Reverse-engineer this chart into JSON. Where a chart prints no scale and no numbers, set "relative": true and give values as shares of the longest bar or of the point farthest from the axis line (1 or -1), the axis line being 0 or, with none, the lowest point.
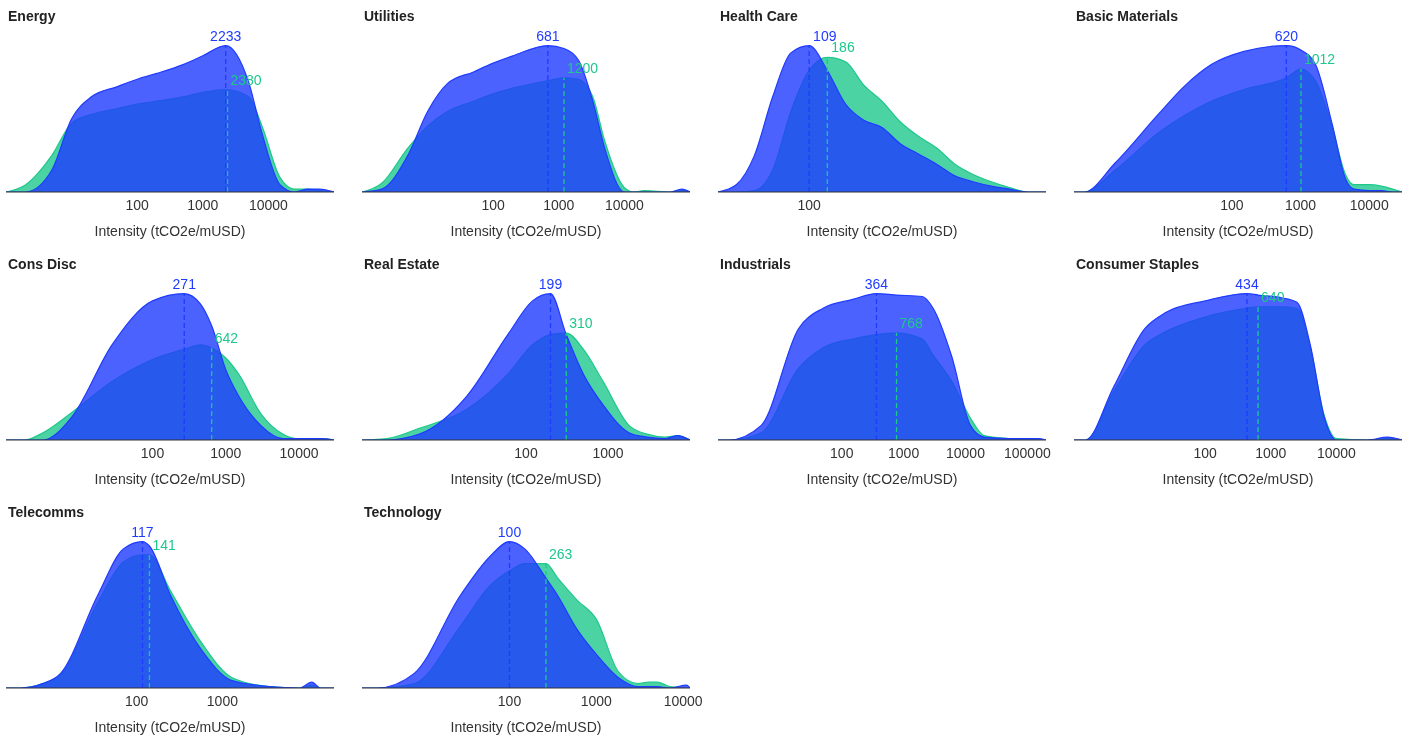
{
  "chart_data": [
    {
      "type": "area",
      "title": "Energy",
      "xlabel": "Intensity (tCO2e/mUSD)",
      "log": "x",
      "relative": true,
      "xlim": [
        1,
        100000
      ],
      "xticks": [
        100,
        1000,
        10000
      ],
      "x": [
        1,
        2,
        5,
        10,
        20,
        50,
        100,
        200,
        500,
        1000,
        2233,
        5000,
        8000,
        15000,
        25000,
        40000,
        60000,
        100000
      ],
      "series": [
        {
          "color": "#1ec88c",
          "values": [
            0,
            0.05,
            0.25,
            0.47,
            0.53,
            0.57,
            0.6,
            0.62,
            0.65,
            0.68,
            0.7,
            0.65,
            0.45,
            0.1,
            0.02,
            0.02,
            0.01,
            0
          ]
        },
        {
          "color": "#1f3bff",
          "values": [
            0,
            0,
            0.15,
            0.5,
            0.65,
            0.72,
            0.77,
            0.81,
            0.87,
            0.93,
            1.0,
            0.75,
            0.4,
            0.05,
            0,
            0.02,
            0.02,
            0
          ]
        }
      ],
      "ref_lines": [
        {
          "axis": "x",
          "value": 2380,
          "label": "2380",
          "color": "#1ec88c",
          "line_style": "dashed"
        },
        {
          "axis": "x",
          "value": 2233,
          "label": "2233",
          "color": "#1f3bff",
          "line_style": "dashed"
        }
      ]
    },
    {
      "type": "area",
      "title": "Utilities",
      "xlabel": "Intensity (tCO2e/mUSD)",
      "log": "x",
      "relative": true,
      "xlim": [
        1,
        100000
      ],
      "xticks": [
        100,
        1000,
        10000
      ],
      "x": [
        1,
        2,
        5,
        10,
        20,
        50,
        100,
        200,
        681,
        1200,
        2000,
        3300,
        5000,
        10000,
        14000,
        20000,
        50000,
        75000,
        100000
      ],
      "series": [
        {
          "color": "#1ec88c",
          "values": [
            0,
            0.06,
            0.3,
            0.45,
            0.55,
            0.62,
            0.67,
            0.71,
            0.76,
            0.78,
            0.77,
            0.65,
            0.35,
            0.03,
            0,
            0.01,
            0,
            0.01,
            0
          ]
        },
        {
          "color": "#1f3bff",
          "values": [
            0,
            0.02,
            0.25,
            0.55,
            0.74,
            0.82,
            0.88,
            0.93,
            1.0,
            0.98,
            0.9,
            0.62,
            0.3,
            0,
            0,
            0,
            0,
            0.02,
            0
          ]
        }
      ],
      "ref_lines": [
        {
          "axis": "x",
          "value": 1200,
          "label": "1200",
          "color": "#1ec88c",
          "line_style": "dashed"
        },
        {
          "axis": "x",
          "value": 681,
          "label": "681",
          "color": "#1f3bff",
          "line_style": "dashed"
        }
      ]
    },
    {
      "type": "area",
      "title": "Health Care",
      "xlabel": "Intensity (tCO2e/mUSD)",
      "relative": true,
      "annotations": [
        "186",
        "109",
        "100"
      ],
      "categories": [
        null,
        null,
        null,
        null,
        null,
        null,
        null,
        null,
        null,
        null,
        null,
        null,
        null,
        null,
        null,
        null,
        null,
        null,
        null
      ],
      "series": [
        {
          "color": "#1ec88c",
          "values": [
            0,
            0,
            0.01,
            0.15,
            0.55,
            0.83,
            0.92,
            0.89,
            0.73,
            0.62,
            0.48,
            0.38,
            0.3,
            0.19,
            0.12,
            0.07,
            0.03,
            0,
            0
          ]
        },
        {
          "color": "#1f3bff",
          "values": [
            0,
            0.05,
            0.25,
            0.65,
            0.95,
            1.0,
            0.83,
            0.6,
            0.49,
            0.44,
            0.33,
            0.26,
            0.19,
            0.11,
            0.07,
            0.04,
            0.02,
            0,
            0
          ]
        }
      ]
    },
    {
      "type": "area",
      "title": "Basic Materials",
      "xlabel": "Intensity (tCO2e/mUSD)",
      "log": "x",
      "relative": true,
      "xlim": [
        0.5,
        30000
      ],
      "xticks": [
        100,
        1000,
        10000
      ],
      "x": [
        0.5,
        0.7,
        2,
        8.8,
        20,
        50,
        150,
        620,
        1012,
        1650,
        2900,
        4500,
        6000,
        10000,
        15000,
        22000,
        30000
      ],
      "series": [
        {
          "color": "#1ec88c",
          "values": [
            0,
            0,
            0.15,
            0.41,
            0.52,
            0.62,
            0.7,
            0.78,
            0.84,
            0.76,
            0.44,
            0.12,
            0.05,
            0.05,
            0.04,
            0.02,
            0
          ]
        },
        {
          "color": "#1f3bff",
          "values": [
            0,
            0,
            0.2,
            0.54,
            0.72,
            0.87,
            0.96,
            1.0,
            0.97,
            0.87,
            0.46,
            0.09,
            0.02,
            0.01,
            0.01,
            0,
            0
          ]
        }
      ],
      "ref_lines": [
        {
          "axis": "x",
          "value": 1012,
          "label": "1012",
          "color": "#1ec88c",
          "line_style": "dashed"
        },
        {
          "axis": "x",
          "value": 620,
          "label": "620",
          "color": "#1f3bff",
          "line_style": "dashed"
        }
      ]
    },
    {
      "type": "area",
      "title": "Cons Disc",
      "xlabel": "Intensity (tCO2e/mUSD)",
      "log": "x",
      "relative": true,
      "xlim": [
        1,
        30000
      ],
      "xticks": [
        100,
        1000,
        10000
      ],
      "x": [
        1,
        1.8,
        3.2,
        8,
        28,
        100,
        271,
        450,
        642,
        1000,
        1500,
        3000,
        6000,
        9000,
        20000,
        30000
      ],
      "series": [
        {
          "color": "#1ec88c",
          "values": [
            0,
            0,
            0.05,
            0.19,
            0.4,
            0.55,
            0.62,
            0.65,
            0.63,
            0.56,
            0.45,
            0.18,
            0.04,
            0.01,
            0.01,
            0
          ]
        },
        {
          "color": "#1f3bff",
          "values": [
            0,
            0,
            0,
            0.16,
            0.65,
            0.95,
            1.0,
            0.93,
            0.78,
            0.48,
            0.3,
            0.1,
            0.01,
            0.01,
            0.01,
            0
          ]
        }
      ],
      "ref_lines": [
        {
          "axis": "x",
          "value": 642,
          "label": "642",
          "color": "#1ec88c",
          "line_style": "dashed"
        },
        {
          "axis": "x",
          "value": 271,
          "label": "271",
          "color": "#1f3bff",
          "line_style": "dashed"
        }
      ]
    },
    {
      "type": "area",
      "title": "Real Estate",
      "xlabel": "Intensity (tCO2e/mUSD)",
      "log": "x",
      "relative": true,
      "xlim": [
        1,
        10000
      ],
      "xticks": [
        100,
        1000
      ],
      "x": [
        1,
        2,
        5,
        19,
        60,
        120,
        199,
        310,
        500,
        870,
        1800,
        3000,
        5000,
        7000,
        10000
      ],
      "series": [
        {
          "color": "#1ec88c",
          "values": [
            0,
            0.01,
            0.08,
            0.21,
            0.45,
            0.65,
            0.72,
            0.73,
            0.62,
            0.4,
            0.1,
            0.04,
            0.02,
            0.03,
            0
          ]
        },
        {
          "color": "#1f3bff",
          "values": [
            0,
            0,
            0.04,
            0.3,
            0.72,
            0.95,
            1.0,
            0.72,
            0.45,
            0.24,
            0.05,
            0.02,
            0.01,
            0.03,
            0
          ]
        }
      ],
      "ref_lines": [
        {
          "axis": "x",
          "value": 310,
          "label": "310",
          "color": "#1ec88c",
          "line_style": "dashed"
        },
        {
          "axis": "x",
          "value": 199,
          "label": "199",
          "color": "#1f3bff",
          "line_style": "dashed"
        }
      ]
    },
    {
      "type": "area",
      "title": "Industrials",
      "xlabel": "Intensity (tCO2e/mUSD)",
      "log": "x",
      "relative": true,
      "xlim": [
        1,
        200000
      ],
      "xticks": [
        100,
        1000,
        10000,
        100000
      ],
      "x": [
        1,
        1.5,
        5,
        20,
        50,
        150,
        364,
        768,
        2000,
        3000,
        6000,
        12000,
        20000,
        50000,
        150000,
        200000
      ],
      "series": [
        {
          "color": "#1ec88c",
          "values": [
            0,
            0,
            0.05,
            0.49,
            0.63,
            0.69,
            0.72,
            0.73,
            0.69,
            0.58,
            0.4,
            0.15,
            0.03,
            0.01,
            0,
            0
          ]
        },
        {
          "color": "#1f3bff",
          "values": [
            0,
            0,
            0.1,
            0.76,
            0.9,
            0.96,
            1.0,
            0.99,
            0.98,
            0.9,
            0.57,
            0.1,
            0.02,
            0.01,
            0.01,
            0
          ]
        }
      ],
      "ref_lines": [
        {
          "axis": "x",
          "value": 768,
          "label": "768",
          "color": "#1ec88c",
          "line_style": "dashed"
        },
        {
          "axis": "x",
          "value": 364,
          "label": "364",
          "color": "#1f3bff",
          "line_style": "dashed"
        }
      ]
    },
    {
      "type": "area",
      "title": "Consumer Staples",
      "xlabel": "Intensity (tCO2e/mUSD)",
      "log": "x",
      "relative": true,
      "xlim": [
        1,
        100000
      ],
      "xticks": [
        100,
        1000,
        10000
      ],
      "x": [
        1,
        1.5,
        4,
        12,
        25,
        100,
        434,
        640,
        1500,
        2500,
        4000,
        6500,
        10000,
        30000,
        60000,
        100000
      ],
      "series": [
        {
          "color": "#1ec88c",
          "values": [
            0,
            0,
            0.33,
            0.65,
            0.74,
            0.84,
            0.9,
            0.91,
            0.91,
            0.9,
            0.63,
            0.17,
            0.01,
            0,
            0.01,
            0
          ]
        },
        {
          "color": "#1f3bff",
          "values": [
            0,
            0,
            0.36,
            0.76,
            0.87,
            0.95,
            1.0,
            0.99,
            0.97,
            0.94,
            0.65,
            0.16,
            0,
            0,
            0.02,
            0
          ]
        }
      ],
      "ref_lines": [
        {
          "axis": "x",
          "value": 640,
          "label": "640",
          "color": "#1ec88c",
          "line_style": "dashed"
        },
        {
          "axis": "x",
          "value": 434,
          "label": "434",
          "color": "#1f3bff",
          "line_style": "dashed"
        }
      ]
    },
    {
      "type": "area",
      "title": "Telecomms",
      "xlabel": "Intensity (tCO2e/mUSD)",
      "log": "x",
      "relative": true,
      "xlim": [
        3,
        20000
      ],
      "xticks": [
        100,
        1000
      ],
      "x": [
        3,
        4.4,
        8,
        13,
        35,
        70,
        117,
        141,
        250,
        570,
        1300,
        3500,
        8000,
        11000,
        14000,
        20000
      ],
      "series": [
        {
          "color": "#1ec88c",
          "values": [
            0,
            0,
            0.03,
            0.09,
            0.58,
            0.86,
            0.91,
            0.91,
            0.66,
            0.31,
            0.07,
            0.01,
            0,
            0.02,
            0,
            0
          ]
        },
        {
          "color": "#1f3bff",
          "values": [
            0,
            0,
            0.03,
            0.1,
            0.63,
            0.95,
            1.0,
            0.97,
            0.63,
            0.26,
            0.05,
            0.01,
            0,
            0.04,
            0,
            0
          ]
        }
      ],
      "ref_lines": [
        {
          "axis": "x",
          "value": 141,
          "label": "141",
          "color": "#1ec88c",
          "line_style": "dashed"
        },
        {
          "axis": "x",
          "value": 117,
          "label": "117",
          "color": "#1f3bff",
          "line_style": "dashed"
        }
      ]
    },
    {
      "type": "area",
      "title": "Technology",
      "xlabel": "Intensity (tCO2e/mUSD)",
      "log": "x",
      "relative": true,
      "xlim": [
        2,
        12000
      ],
      "xticks": [
        100,
        1000,
        10000
      ],
      "x": [
        2,
        3,
        8,
        27,
        60,
        100,
        150,
        263,
        360,
        600,
        1000,
        1800,
        3000,
        4000,
        5000,
        7000,
        11000,
        12000
      ],
      "series": [
        {
          "color": "#1ec88c",
          "values": [
            0,
            0,
            0.03,
            0.42,
            0.7,
            0.8,
            0.85,
            0.85,
            0.75,
            0.6,
            0.47,
            0.11,
            0.03,
            0.04,
            0.04,
            0.01,
            0,
            0
          ]
        },
        {
          "color": "#1f3bff",
          "values": [
            0,
            0,
            0.1,
            0.63,
            0.9,
            1.0,
            0.95,
            0.75,
            0.63,
            0.4,
            0.23,
            0.07,
            0.01,
            0.01,
            0.01,
            0,
            0.02,
            0
          ]
        }
      ],
      "ref_lines": [
        {
          "axis": "x",
          "value": 263,
          "label": "263",
          "color": "#1ec88c",
          "line_style": "dashed"
        },
        {
          "axis": "x",
          "value": 100,
          "label": "100",
          "color": "#1f3bff",
          "line_style": "dashed"
        }
      ]
    }
  ]
}
